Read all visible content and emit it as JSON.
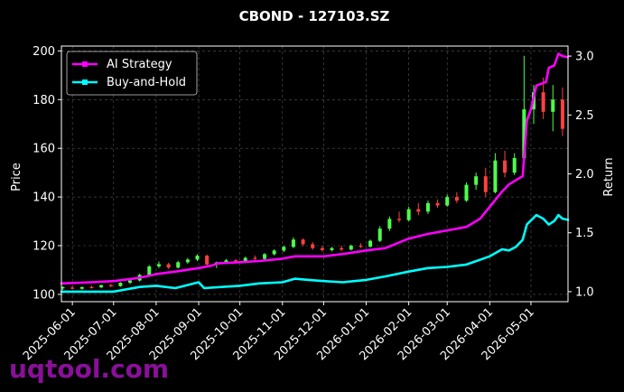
{
  "chart_data": {
    "type": "line",
    "title": "CBOND - 127103.SZ",
    "ylabel": "Price",
    "y2label": "Return",
    "ylim": [
      97,
      202
    ],
    "y2lim": [
      0.915,
      3.085
    ],
    "xlim": [
      "2025-05-24",
      "2026-05-28"
    ],
    "y_ticks": [
      100,
      120,
      140,
      160,
      180,
      200
    ],
    "y2_ticks": [
      1.0,
      1.5,
      2.0,
      2.5,
      3.0
    ],
    "x_ticks": [
      "2025-06-01",
      "2025-07-01",
      "2025-08-01",
      "2025-09-01",
      "2025-10-01",
      "2025-11-01",
      "2025-12-01",
      "2026-01-01",
      "2026-02-01",
      "2026-03-01",
      "2026-04-01",
      "2026-05-01"
    ],
    "grid": true,
    "legend_position": "top-left",
    "series": [
      {
        "name": "AI Strategy",
        "axis": "right",
        "color": "#ff00ff",
        "points": [
          [
            "2025-05-24",
            1.07
          ],
          [
            "2025-06-15",
            1.08
          ],
          [
            "2025-07-01",
            1.09
          ],
          [
            "2025-07-15",
            1.11
          ],
          [
            "2025-07-25",
            1.13
          ],
          [
            "2025-08-01",
            1.15
          ],
          [
            "2025-08-15",
            1.17
          ],
          [
            "2025-09-01",
            1.2
          ],
          [
            "2025-09-10",
            1.22
          ],
          [
            "2025-09-15",
            1.24
          ],
          [
            "2025-10-01",
            1.25
          ],
          [
            "2025-10-15",
            1.26
          ],
          [
            "2025-11-01",
            1.28
          ],
          [
            "2025-11-10",
            1.3
          ],
          [
            "2025-11-20",
            1.3
          ],
          [
            "2025-12-01",
            1.3
          ],
          [
            "2025-12-15",
            1.32
          ],
          [
            "2026-01-01",
            1.35
          ],
          [
            "2026-01-15",
            1.37
          ],
          [
            "2026-02-01",
            1.45
          ],
          [
            "2026-02-15",
            1.49
          ],
          [
            "2026-03-01",
            1.52
          ],
          [
            "2026-03-15",
            1.55
          ],
          [
            "2026-03-25",
            1.62
          ],
          [
            "2026-04-01",
            1.72
          ],
          [
            "2026-04-10",
            1.85
          ],
          [
            "2026-04-15",
            1.91
          ],
          [
            "2026-04-22",
            1.96
          ],
          [
            "2026-04-25",
            1.98
          ],
          [
            "2026-04-28",
            2.45
          ],
          [
            "2026-05-01",
            2.55
          ],
          [
            "2026-05-05",
            2.75
          ],
          [
            "2026-05-12",
            2.78
          ],
          [
            "2026-05-14",
            2.9
          ],
          [
            "2026-05-18",
            2.92
          ],
          [
            "2026-05-21",
            3.02
          ],
          [
            "2026-05-24",
            3.0
          ],
          [
            "2026-05-28",
            2.99
          ]
        ]
      },
      {
        "name": "Buy-and-Hold",
        "axis": "right",
        "color": "#00ffff",
        "points": [
          [
            "2025-05-24",
            1.0
          ],
          [
            "2025-06-15",
            1.0
          ],
          [
            "2025-07-01",
            1.0
          ],
          [
            "2025-07-20",
            1.04
          ],
          [
            "2025-08-01",
            1.05
          ],
          [
            "2025-08-15",
            1.03
          ],
          [
            "2025-09-01",
            1.08
          ],
          [
            "2025-09-05",
            1.03
          ],
          [
            "2025-10-01",
            1.05
          ],
          [
            "2025-10-15",
            1.07
          ],
          [
            "2025-11-01",
            1.08
          ],
          [
            "2025-11-10",
            1.11
          ],
          [
            "2025-11-20",
            1.1
          ],
          [
            "2025-12-01",
            1.09
          ],
          [
            "2025-12-15",
            1.08
          ],
          [
            "2026-01-01",
            1.1
          ],
          [
            "2026-01-15",
            1.13
          ],
          [
            "2026-02-01",
            1.17
          ],
          [
            "2026-02-15",
            1.2
          ],
          [
            "2026-03-01",
            1.21
          ],
          [
            "2026-03-15",
            1.23
          ],
          [
            "2026-04-01",
            1.3
          ],
          [
            "2026-04-10",
            1.36
          ],
          [
            "2026-04-15",
            1.35
          ],
          [
            "2026-04-20",
            1.38
          ],
          [
            "2026-04-25",
            1.44
          ],
          [
            "2026-04-28",
            1.57
          ],
          [
            "2026-05-05",
            1.65
          ],
          [
            "2026-05-10",
            1.62
          ],
          [
            "2026-05-14",
            1.57
          ],
          [
            "2026-05-18",
            1.6
          ],
          [
            "2026-05-21",
            1.65
          ],
          [
            "2026-05-24",
            1.62
          ],
          [
            "2026-05-28",
            1.61
          ]
        ]
      },
      {
        "name": "Price",
        "axis": "left",
        "type": "candlestick",
        "up_color": "#4cff4c",
        "down_color": "#ff4040",
        "points": [
          [
            "2025-05-25",
            102.5,
            103.3,
            101.8,
            103.0
          ],
          [
            "2025-06-01",
            102.8,
            103.5,
            102.0,
            102.3
          ],
          [
            "2025-06-08",
            102.3,
            103.2,
            101.9,
            103.0
          ],
          [
            "2025-06-15",
            103.0,
            103.6,
            102.4,
            102.9
          ],
          [
            "2025-06-22",
            102.9,
            104.0,
            102.5,
            103.8
          ],
          [
            "2025-06-29",
            103.8,
            104.3,
            103.0,
            103.4
          ],
          [
            "2025-07-06",
            103.4,
            105.0,
            103.1,
            104.8
          ],
          [
            "2025-07-13",
            104.8,
            106.0,
            104.2,
            105.7
          ],
          [
            "2025-07-20",
            105.7,
            108.5,
            105.3,
            108.0
          ],
          [
            "2025-07-27",
            108.0,
            112.0,
            107.6,
            111.5
          ],
          [
            "2025-08-03",
            111.5,
            113.5,
            110.8,
            112.4
          ],
          [
            "2025-08-10",
            112.4,
            113.0,
            110.5,
            111.0
          ],
          [
            "2025-08-17",
            111.0,
            113.8,
            110.6,
            113.2
          ],
          [
            "2025-08-24",
            113.2,
            115.0,
            112.6,
            114.3
          ],
          [
            "2025-08-31",
            114.3,
            116.5,
            113.7,
            115.9
          ],
          [
            "2025-09-07",
            115.9,
            116.3,
            111.5,
            112.3
          ],
          [
            "2025-09-14",
            112.3,
            113.5,
            110.8,
            113.1
          ],
          [
            "2025-09-21",
            113.1,
            114.6,
            112.5,
            114.0
          ],
          [
            "2025-09-28",
            114.0,
            114.5,
            112.8,
            113.5
          ],
          [
            "2025-10-05",
            113.5,
            115.5,
            113.0,
            115.0
          ],
          [
            "2025-10-12",
            115.0,
            116.0,
            114.1,
            114.6
          ],
          [
            "2025-10-19",
            114.6,
            117.0,
            114.2,
            116.5
          ],
          [
            "2025-10-26",
            116.5,
            118.5,
            116.0,
            118.0
          ],
          [
            "2025-11-02",
            118.0,
            120.0,
            117.4,
            119.5
          ],
          [
            "2025-11-09",
            119.5,
            123.5,
            119.0,
            122.5
          ],
          [
            "2025-11-16",
            122.5,
            123.0,
            119.8,
            120.6
          ],
          [
            "2025-11-23",
            120.6,
            121.5,
            118.3,
            119.0
          ],
          [
            "2025-11-30",
            119.0,
            120.0,
            117.5,
            118.2
          ],
          [
            "2025-12-07",
            118.2,
            119.5,
            117.6,
            119.0
          ],
          [
            "2025-12-14",
            119.0,
            120.0,
            117.8,
            118.4
          ],
          [
            "2025-12-21",
            118.4,
            120.5,
            118.0,
            120.0
          ],
          [
            "2025-12-28",
            120.0,
            121.0,
            119.0,
            119.6
          ],
          [
            "2026-01-04",
            119.6,
            122.5,
            119.2,
            122.0
          ],
          [
            "2026-01-11",
            122.0,
            128.0,
            121.5,
            127.0
          ],
          [
            "2026-01-18",
            127.0,
            132.0,
            126.0,
            131.0
          ],
          [
            "2026-01-25",
            131.0,
            134.0,
            129.5,
            130.5
          ],
          [
            "2026-02-01",
            130.5,
            136.0,
            130.0,
            135.0
          ],
          [
            "2026-02-08",
            135.0,
            137.5,
            132.5,
            134.0
          ],
          [
            "2026-02-15",
            134.0,
            138.5,
            133.0,
            137.5
          ],
          [
            "2026-02-22",
            137.5,
            139.0,
            135.5,
            136.5
          ],
          [
            "2026-03-01",
            136.5,
            141.0,
            136.0,
            140.0
          ],
          [
            "2026-03-08",
            140.0,
            142.0,
            137.5,
            138.5
          ],
          [
            "2026-03-15",
            138.5,
            146.0,
            138.0,
            145.0
          ],
          [
            "2026-03-22",
            145.0,
            150.0,
            143.0,
            148.5
          ],
          [
            "2026-03-29",
            148.5,
            152.0,
            140.0,
            142.0
          ],
          [
            "2026-04-05",
            142.0,
            158.0,
            141.5,
            155.0
          ],
          [
            "2026-04-12",
            155.0,
            159.0,
            148.0,
            150.0
          ],
          [
            "2026-04-19",
            150.0,
            158.0,
            149.0,
            156.0
          ],
          [
            "2026-04-26",
            156.0,
            198.0,
            155.0,
            176.0
          ],
          [
            "2026-05-03",
            176.0,
            186.0,
            170.0,
            183.0
          ],
          [
            "2026-05-10",
            183.0,
            189.0,
            172.0,
            175.0
          ],
          [
            "2026-05-17",
            175.0,
            186.0,
            167.0,
            180.0
          ],
          [
            "2026-05-24",
            180.0,
            185.0,
            165.0,
            168.0
          ]
        ]
      }
    ]
  },
  "watermark": "uqtool.com"
}
